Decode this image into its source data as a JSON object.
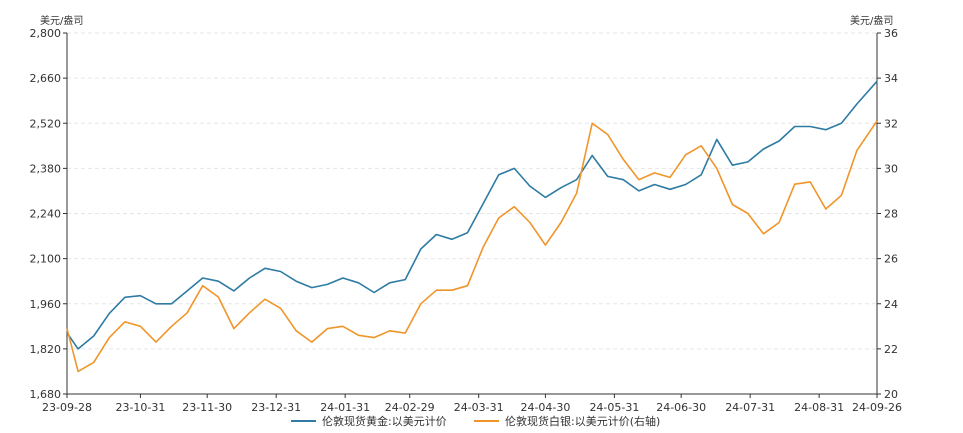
{
  "chart_data": {
    "type": "line",
    "title": "",
    "left_axis": {
      "unit": "美元/盎司",
      "ylim": [
        1680,
        2800
      ],
      "ticks": [
        "1,680",
        "1,820",
        "1,960",
        "2,100",
        "2,240",
        "2,380",
        "2,520",
        "2,660",
        "2,800"
      ]
    },
    "right_axis": {
      "unit": "美元/盎司",
      "ylim": [
        20,
        36
      ],
      "ticks": [
        "20",
        "22",
        "24",
        "26",
        "28",
        "30",
        "32",
        "34",
        "36"
      ]
    },
    "x_ticks": [
      "23-09-28",
      "23-10-31",
      "23-11-30",
      "23-12-31",
      "24-01-31",
      "24-02-29",
      "24-03-31",
      "24-04-30",
      "24-05-31",
      "24-06-30",
      "24-07-31",
      "24-08-31",
      "24-09-26"
    ],
    "grid": true,
    "legend_position": "bottom",
    "colors": {
      "gold": "#2e7ba3",
      "silver": "#f0952a"
    },
    "series": [
      {
        "name": "伦敦现货黄金:以美元计价",
        "axis": "left",
        "x": [
          "2023-09-28",
          "2023-10-03",
          "2023-10-10",
          "2023-10-17",
          "2023-10-24",
          "2023-10-31",
          "2023-11-07",
          "2023-11-14",
          "2023-11-21",
          "2023-11-28",
          "2023-12-05",
          "2023-12-12",
          "2023-12-19",
          "2023-12-26",
          "2024-01-02",
          "2024-01-09",
          "2024-01-16",
          "2024-01-23",
          "2024-01-30",
          "2024-02-06",
          "2024-02-13",
          "2024-02-20",
          "2024-02-27",
          "2024-03-05",
          "2024-03-12",
          "2024-03-19",
          "2024-03-26",
          "2024-04-02",
          "2024-04-09",
          "2024-04-16",
          "2024-04-23",
          "2024-04-30",
          "2024-05-07",
          "2024-05-14",
          "2024-05-21",
          "2024-05-28",
          "2024-06-04",
          "2024-06-11",
          "2024-06-18",
          "2024-06-25",
          "2024-07-02",
          "2024-07-09",
          "2024-07-16",
          "2024-07-23",
          "2024-07-30",
          "2024-08-06",
          "2024-08-13",
          "2024-08-20",
          "2024-08-27",
          "2024-09-03",
          "2024-09-10",
          "2024-09-17",
          "2024-09-26"
        ],
        "values": [
          1870,
          1820,
          1860,
          1930,
          1980,
          1985,
          1960,
          1960,
          2000,
          2040,
          2030,
          2000,
          2040,
          2070,
          2060,
          2030,
          2010,
          2020,
          2040,
          2025,
          1995,
          2025,
          2035,
          2130,
          2175,
          2160,
          2180,
          2270,
          2360,
          2380,
          2325,
          2290,
          2320,
          2345,
          2420,
          2355,
          2345,
          2310,
          2330,
          2315,
          2330,
          2360,
          2470,
          2390,
          2400,
          2440,
          2465,
          2510,
          2510,
          2500,
          2520,
          2580,
          2650
        ]
      },
      {
        "name": "伦敦现货白银:以美元计价(右轴)",
        "axis": "right",
        "x": [
          "2023-09-28",
          "2023-10-03",
          "2023-10-10",
          "2023-10-17",
          "2023-10-24",
          "2023-10-31",
          "2023-11-07",
          "2023-11-14",
          "2023-11-21",
          "2023-11-28",
          "2023-12-05",
          "2023-12-12",
          "2023-12-19",
          "2023-12-26",
          "2024-01-02",
          "2024-01-09",
          "2024-01-16",
          "2024-01-23",
          "2024-01-30",
          "2024-02-06",
          "2024-02-13",
          "2024-02-20",
          "2024-02-27",
          "2024-03-05",
          "2024-03-12",
          "2024-03-19",
          "2024-03-26",
          "2024-04-02",
          "2024-04-09",
          "2024-04-16",
          "2024-04-23",
          "2024-04-30",
          "2024-05-07",
          "2024-05-14",
          "2024-05-21",
          "2024-05-28",
          "2024-06-04",
          "2024-06-11",
          "2024-06-18",
          "2024-06-25",
          "2024-07-02",
          "2024-07-09",
          "2024-07-16",
          "2024-07-23",
          "2024-07-30",
          "2024-08-06",
          "2024-08-13",
          "2024-08-20",
          "2024-08-27",
          "2024-09-03",
          "2024-09-10",
          "2024-09-17",
          "2024-09-26"
        ],
        "values": [
          22.9,
          21.0,
          21.4,
          22.5,
          23.2,
          23.0,
          22.3,
          23.0,
          23.6,
          24.8,
          24.3,
          22.9,
          23.6,
          24.2,
          23.8,
          22.8,
          22.3,
          22.9,
          23.0,
          22.6,
          22.5,
          22.8,
          22.7,
          24.0,
          24.6,
          24.6,
          24.8,
          26.5,
          27.8,
          28.3,
          27.6,
          26.6,
          27.6,
          28.9,
          32.0,
          31.5,
          30.4,
          29.5,
          29.8,
          29.6,
          30.6,
          31.0,
          30.0,
          28.4,
          28.0,
          27.1,
          27.6,
          29.3,
          29.4,
          28.2,
          28.8,
          30.8,
          32.1
        ]
      }
    ]
  }
}
